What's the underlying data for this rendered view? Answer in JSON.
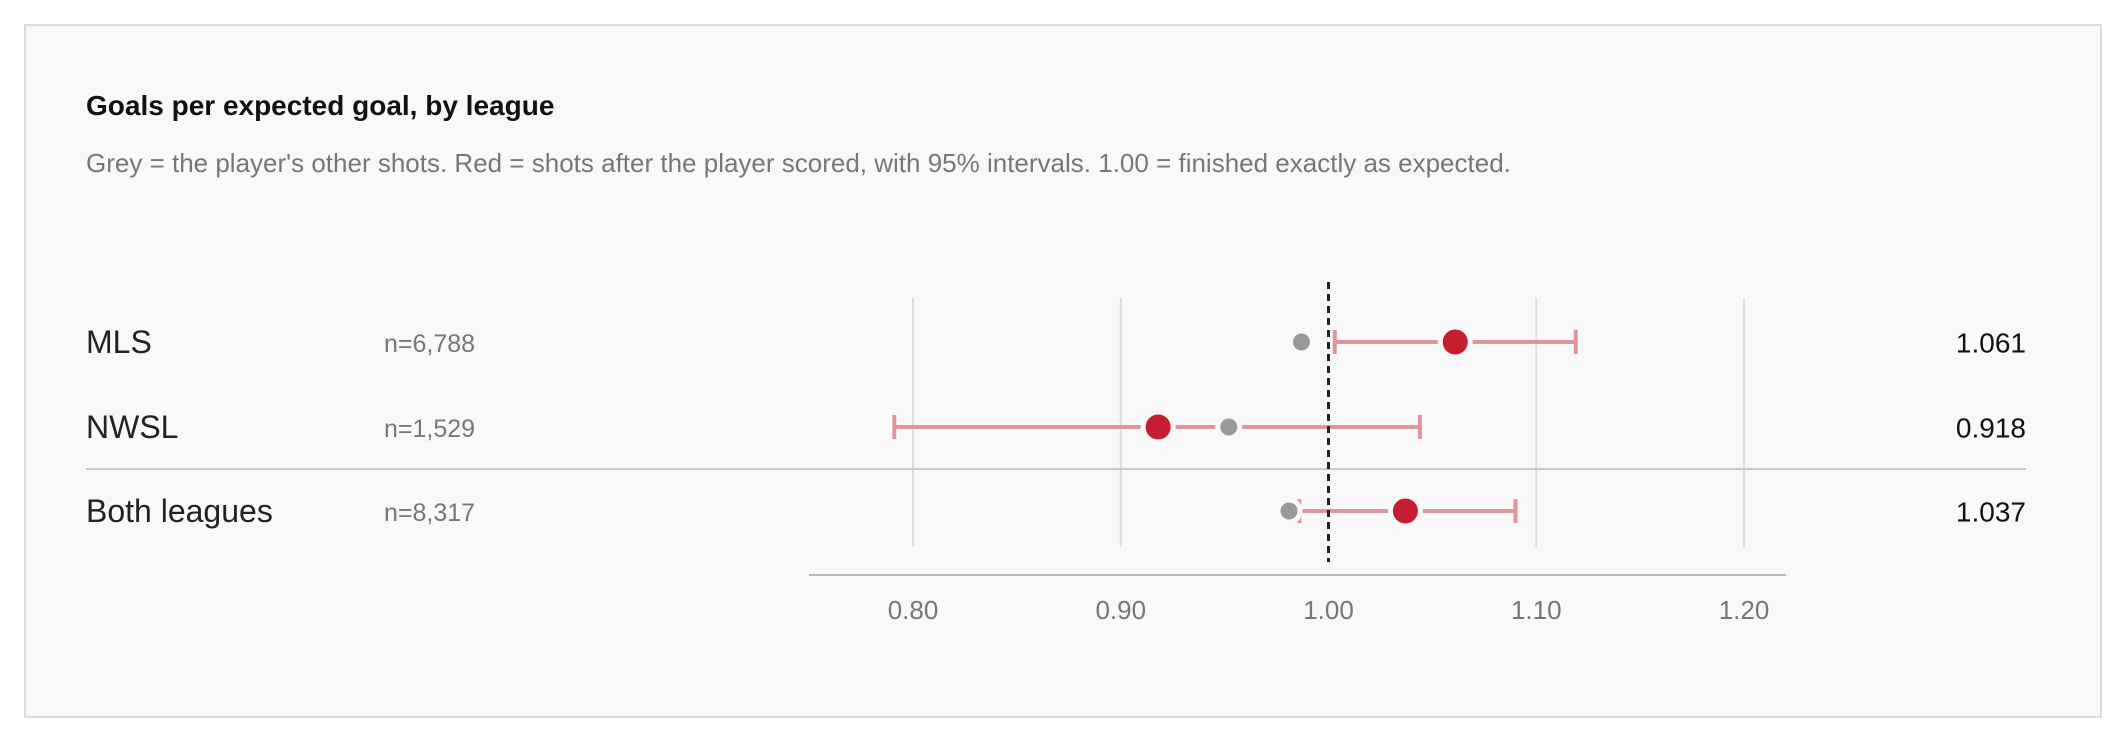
{
  "title": "Goals per expected goal, by league",
  "subtitle": "Grey = the player's other shots. Red = shots after the player scored, with 95% intervals. 1.00 = finished exactly as expected.",
  "colors": {
    "grey_point": "#999999",
    "red_point": "#c41e30",
    "interval": "#e0949b",
    "gridline": "#dddddd",
    "reference_line": "#222222",
    "card_background": "#f8f8f8"
  },
  "chart_data": {
    "type": "dot-interval",
    "title": "Goals per expected goal, by league",
    "subtitle": "Grey = the player's other shots. Red = shots after the player scored, with 95% intervals. 1.00 = finished exactly as expected.",
    "xlim": [
      0.75,
      1.22
    ],
    "x_ticks": [
      0.8,
      0.9,
      1.0,
      1.1,
      1.2
    ],
    "x_tick_labels": [
      "0.80",
      "0.90",
      "1.00",
      "1.10",
      "1.20"
    ],
    "reference_value": 1.0,
    "grid": true,
    "rows": [
      {
        "label": "MLS",
        "n_label": "n=6,788",
        "grey": 0.987,
        "red": 1.061,
        "ci_low": 1.003,
        "ci_high": 1.119,
        "value_label": "1.061"
      },
      {
        "label": "NWSL",
        "n_label": "n=1,529",
        "grey": 0.952,
        "red": 0.918,
        "ci_low": 0.791,
        "ci_high": 1.044,
        "value_label": "0.918"
      },
      {
        "label": "Both leagues",
        "n_label": "n=8,317",
        "grey": 0.981,
        "red": 1.037,
        "ci_low": 0.986,
        "ci_high": 1.09,
        "value_label": "1.037"
      }
    ]
  }
}
